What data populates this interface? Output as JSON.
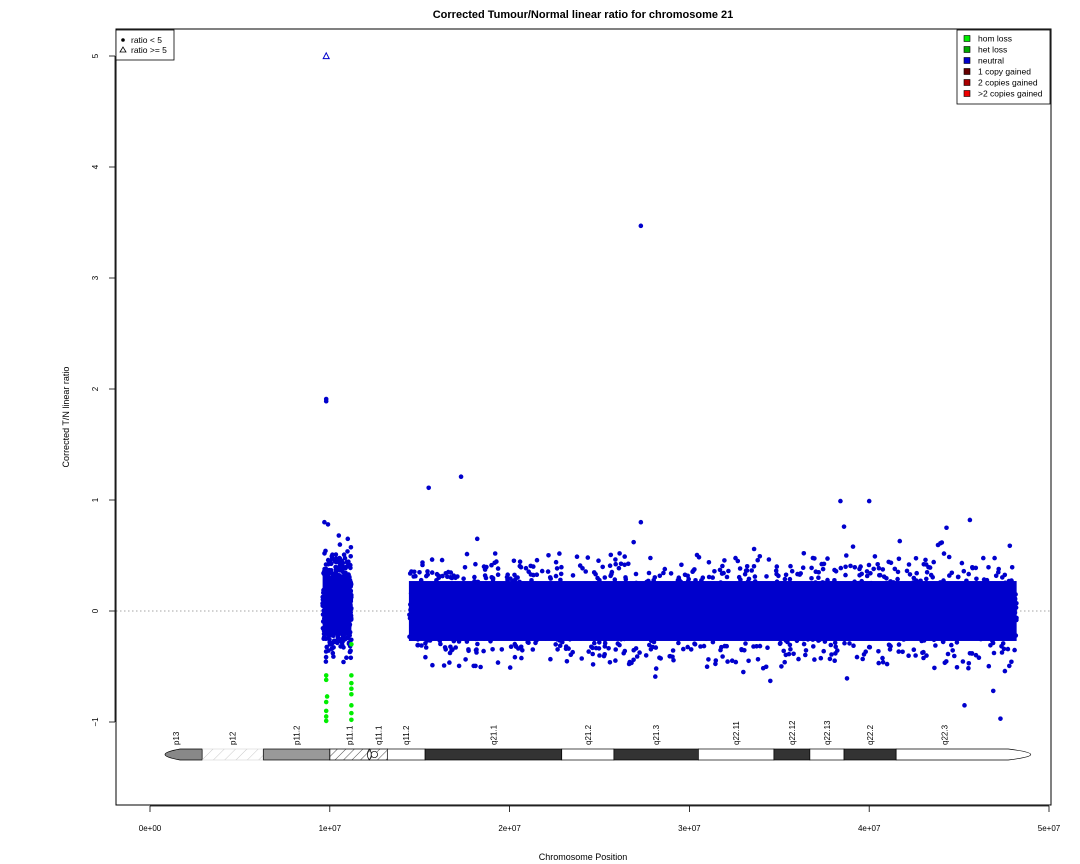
{
  "chart_data": {
    "type": "scatter",
    "title": "Corrected Tumour/Normal linear ratio for chromosome  21",
    "xlabel": "Chromosome Position",
    "ylabel": "Corrected T/N linear ratio",
    "xlim": [
      0,
      50000000
    ],
    "ylim": [
      -1.5,
      5.2
    ],
    "x_ticks": [
      0,
      10000000,
      20000000,
      30000000,
      40000000,
      50000000
    ],
    "x_tick_labels": [
      "0e+00",
      "1e+07",
      "2e+07",
      "3e+07",
      "4e+07",
      "5e+07"
    ],
    "y_ticks": [
      -1,
      0,
      1,
      2,
      3,
      4,
      5
    ],
    "y_tick_labels": [
      "−1",
      "0",
      "1",
      "2",
      "3",
      "4",
      "5"
    ],
    "reference_line": {
      "y": 0,
      "style": "dotted"
    },
    "shape_legend": {
      "position": "top-left",
      "entries": [
        {
          "label": "ratio < 5",
          "symbol": "filled-circle"
        },
        {
          "label": "ratio >= 5",
          "symbol": "open-triangle"
        }
      ]
    },
    "state_legend": {
      "position": "top-right",
      "entries": [
        {
          "label": "hom loss",
          "color": "#00ee00"
        },
        {
          "label": "het loss",
          "color": "#00aa00"
        },
        {
          "label": "neutral",
          "color": "#0000cc"
        },
        {
          "label": "1 copy gained",
          "color": "#660000"
        },
        {
          "label": "2 copies gained",
          "color": "#aa0000"
        },
        {
          "label": ">2 copies gained",
          "color": "#ee0000"
        }
      ]
    },
    "series": [
      {
        "name": "neutral",
        "color": "#0000cc",
        "dense_regions": [
          {
            "x": [
              9600000,
              11200000
            ],
            "y_core": [
              -0.25,
              0.35
            ]
          },
          {
            "x": [
              14400000,
              48200000
            ],
            "y_core": [
              -0.3,
              0.3
            ]
          }
        ],
        "outliers": [
          [
            9800000,
            1.91
          ],
          [
            9800000,
            1.89
          ],
          [
            15500000,
            1.11
          ],
          [
            17300000,
            1.21
          ],
          [
            27300000,
            3.47
          ],
          [
            27300000,
            0.8
          ],
          [
            38400000,
            0.99
          ],
          [
            40000000,
            0.99
          ],
          [
            38600000,
            0.76
          ],
          [
            45600000,
            0.82
          ],
          [
            44300000,
            0.75
          ],
          [
            47300000,
            -0.97
          ],
          [
            45300000,
            -0.85
          ],
          [
            46900000,
            -0.72
          ],
          [
            34500000,
            -0.63
          ],
          [
            33000000,
            -0.55
          ],
          [
            9700000,
            0.8
          ],
          [
            9900000,
            0.78
          ],
          [
            10500000,
            0.68
          ],
          [
            11000000,
            0.65
          ],
          [
            18200000,
            0.65
          ],
          [
            26900000,
            0.62
          ],
          [
            41700000,
            0.63
          ],
          [
            39100000,
            0.58
          ]
        ]
      },
      {
        "name": "hom loss",
        "color": "#00ee00",
        "points": [
          [
            9800000,
            -0.58
          ],
          [
            9800000,
            -0.62
          ],
          [
            9800000,
            -0.82
          ],
          [
            9800000,
            -0.9
          ],
          [
            9800000,
            -0.95
          ],
          [
            9800000,
            -0.99
          ],
          [
            9850000,
            -0.77
          ],
          [
            11200000,
            -0.3
          ],
          [
            11200000,
            -0.58
          ],
          [
            11200000,
            -0.65
          ],
          [
            11200000,
            -0.7
          ],
          [
            11200000,
            -0.75
          ],
          [
            11200000,
            -0.85
          ],
          [
            11200000,
            -0.92
          ],
          [
            11200000,
            -0.98
          ]
        ]
      },
      {
        "name": "ratio >= 5",
        "color": "#0000cc",
        "symbol": "open-triangle",
        "points": [
          [
            9800000,
            5.0
          ]
        ]
      }
    ],
    "ideogram": {
      "bands": [
        {
          "name": "p13",
          "start": 0,
          "end": 2900000,
          "fill": "#888888",
          "kind": "cap-left"
        },
        {
          "name": "p12",
          "start": 2900000,
          "end": 6300000,
          "fill": "none",
          "kind": "stalk"
        },
        {
          "name": "p11.2",
          "start": 6300000,
          "end": 10000000,
          "fill": "#999999",
          "kind": "band"
        },
        {
          "name": "p11.1",
          "start": 10000000,
          "end": 12200000,
          "fill": "hatch",
          "kind": "centro-left"
        },
        {
          "name": "q11.1",
          "start": 12200000,
          "end": 13200000,
          "fill": "hatch",
          "kind": "centro-right"
        },
        {
          "name": "q11.2",
          "start": 13200000,
          "end": 15300000,
          "fill": "#ffffff",
          "kind": "band"
        },
        {
          "name": "q21.1",
          "start": 15300000,
          "end": 22900000,
          "fill": "#333333",
          "kind": "band"
        },
        {
          "name": "q21.2",
          "start": 22900000,
          "end": 25800000,
          "fill": "#ffffff",
          "kind": "band"
        },
        {
          "name": "q21.3",
          "start": 25800000,
          "end": 30500000,
          "fill": "#333333",
          "kind": "band"
        },
        {
          "name": "q22.11",
          "start": 30500000,
          "end": 34700000,
          "fill": "#ffffff",
          "kind": "band"
        },
        {
          "name": "q22.12",
          "start": 34700000,
          "end": 36700000,
          "fill": "#333333",
          "kind": "band"
        },
        {
          "name": "q22.13",
          "start": 36700000,
          "end": 38600000,
          "fill": "#ffffff",
          "kind": "band"
        },
        {
          "name": "q22.2",
          "start": 38600000,
          "end": 41500000,
          "fill": "#333333",
          "kind": "band"
        },
        {
          "name": "q22.3",
          "start": 41500000,
          "end": 46900000,
          "fill": "#ffffff",
          "kind": "cap-right"
        }
      ]
    }
  }
}
